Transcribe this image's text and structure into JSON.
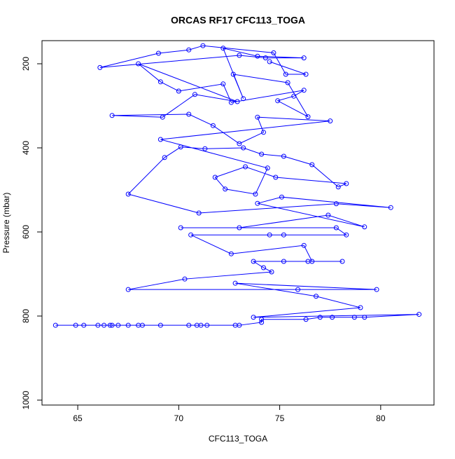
{
  "chart_data": {
    "type": "scatter-line",
    "title": "ORCAS RF17 CFC113_TOGA",
    "x_label": "CFC113_TOGA",
    "y_label": "Pressure (mbar)",
    "color": "#0000ff",
    "xlim": [
      63.23,
      82.64
    ],
    "ylim": [
      1011.7,
      145
    ],
    "xticks": [
      65,
      70,
      75,
      80
    ],
    "yticks": [
      200,
      400,
      600,
      800,
      1000
    ],
    "x": [
      63.9,
      64.9,
      65.3,
      66.0,
      66.3,
      66.6,
      66.7,
      67.0,
      67.5,
      68.0,
      68.2,
      69.1,
      70.5,
      70.9,
      71.1,
      71.4,
      72.8,
      73.0,
      74.1,
      74.1,
      76.3,
      77.0,
      77.6,
      78.7,
      79.2,
      81.9,
      73.7,
      79.0,
      76.8,
      72.8,
      79.8,
      75.9,
      67.5,
      70.3,
      74.6,
      74.2,
      73.7,
      75.2,
      76.4,
      78.1,
      76.6,
      76.2,
      72.6,
      70.6,
      75.2,
      74.5,
      78.3,
      77.8,
      70.1,
      73.0,
      77.4,
      79.2,
      73.9,
      75.1,
      80.5,
      77.8,
      71.0,
      67.5,
      69.3,
      70.1,
      71.3,
      73.2,
      74.1,
      75.2,
      76.6,
      77.9,
      78.3,
      74.8,
      73.3,
      71.8,
      72.3,
      73.8,
      74.4,
      69.1,
      77.5,
      73.9,
      74.2,
      73.0,
      71.7,
      70.5,
      66.7,
      69.2,
      70.8,
      72.9,
      68.0,
      69.1,
      70.0,
      72.2,
      72.6,
      76.2,
      75.7,
      74.9,
      76.4,
      75.4,
      72.7,
      73.2,
      72.2,
      73.9,
      76.2,
      74.3,
      73.0,
      66.1,
      69.0,
      70.5,
      71.2,
      74.7,
      75.3,
      76.3,
      74.5
    ],
    "values": [
      822,
      822,
      822,
      822,
      822,
      822,
      822,
      822,
      822,
      822,
      822,
      822,
      822,
      822,
      822,
      822,
      822,
      822,
      815,
      808,
      808,
      803,
      803,
      803,
      803,
      796,
      803,
      780,
      753,
      722,
      737,
      737,
      737,
      712,
      695,
      685,
      670,
      670,
      670,
      670,
      670,
      632,
      652,
      607,
      607,
      607,
      607,
      590,
      590,
      590,
      560,
      588,
      532,
      517,
      542,
      533,
      555,
      510,
      423,
      398,
      402,
      400,
      415,
      420,
      440,
      493,
      485,
      470,
      445,
      470,
      498,
      510,
      448,
      380,
      336,
      327,
      363,
      390,
      347,
      320,
      323,
      327,
      273,
      290,
      200,
      243,
      265,
      248,
      292,
      263,
      277,
      288,
      326,
      245,
      225,
      283,
      163,
      182,
      186,
      186,
      180,
      209,
      175,
      167,
      157,
      174,
      225,
      225,
      195
    ]
  }
}
